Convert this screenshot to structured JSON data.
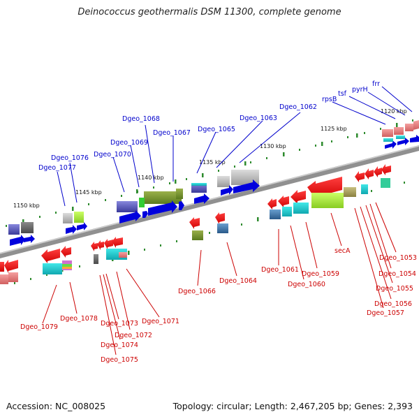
{
  "title": "Deinococcus geothermalis DSM 11300, complete genome",
  "footer": {
    "accession": "Accession: NC_008025",
    "stats": "Topology: circular; Length: 2,467,205 bp; Genes: 2,393"
  },
  "scale_labels": [
    "1120 kbp",
    "1125 kbp",
    "1130 kbp",
    "1135 kbp",
    "1140 kbp",
    "1145 kbp",
    "1150 kbp"
  ],
  "top_labels": [
    "frr",
    "pyrH",
    "tsf",
    "rpsB",
    "Dgeo_1062",
    "Dgeo_1063",
    "Dgeo_1065",
    "Dgeo_1067",
    "Dgeo_1068",
    "Dgeo_1069",
    "Dgeo_1070",
    "Dgeo_1076",
    "Dgeo_1077"
  ],
  "bottom_labels": [
    "Dgeo_1053",
    "Dgeo_1054",
    "Dgeo_1055",
    "Dgeo_1056",
    "Dgeo_1057",
    "secA",
    "Dgeo_1059",
    "Dgeo_1060",
    "Dgeo_1061",
    "Dgeo_1064",
    "Dgeo_1066",
    "Dgeo_1071",
    "Dgeo_1072",
    "Dgeo_1073",
    "Dgeo_1074",
    "Dgeo_1075",
    "Dgeo_1078",
    "Dgeo_1079"
  ],
  "colors": {
    "forward_label": "#0000cc",
    "reverse_label": "#cc0000",
    "backbone": "#808080",
    "tick": "#2e8b2e"
  }
}
